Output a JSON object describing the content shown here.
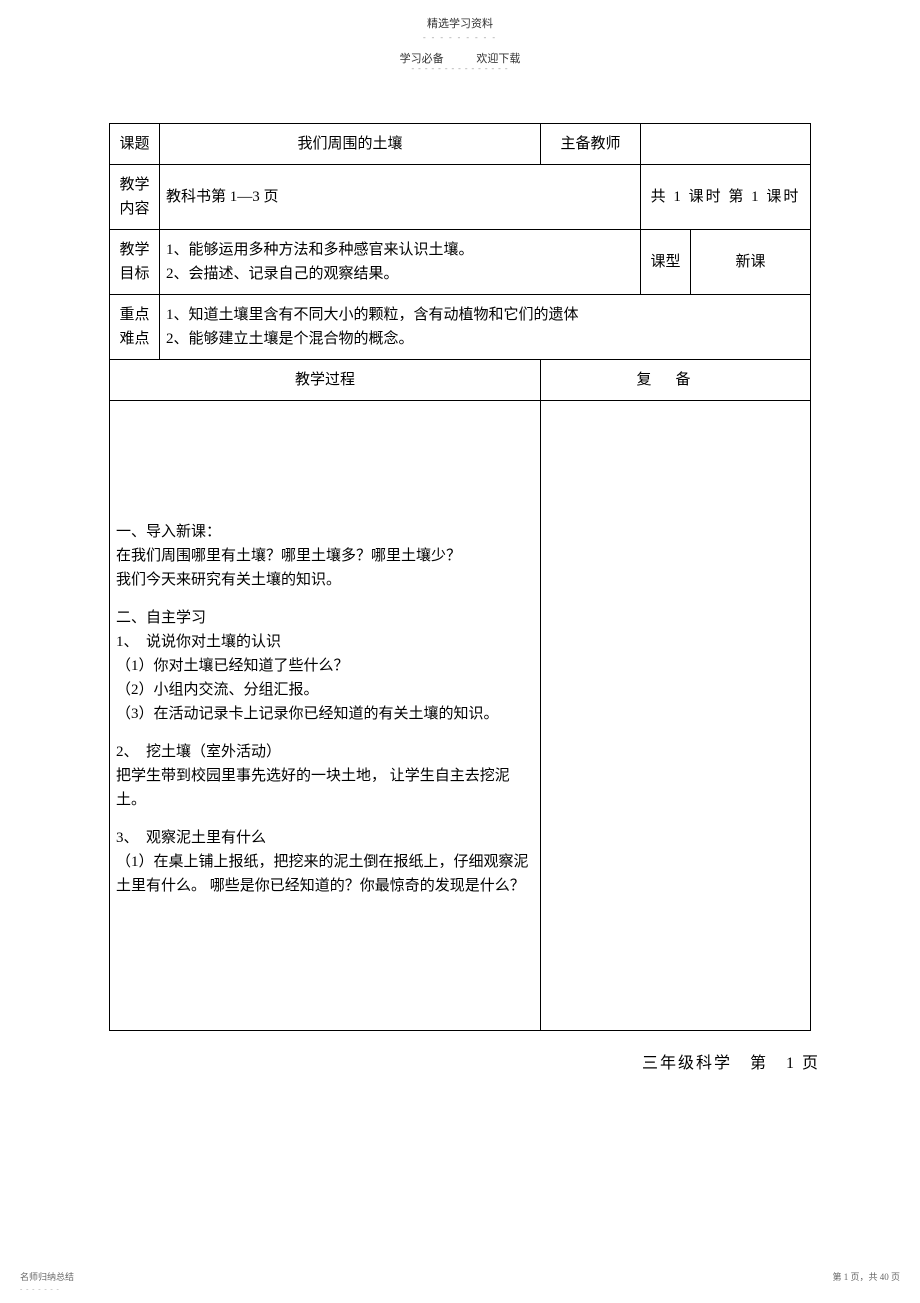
{
  "header": {
    "top": "精选学习资料",
    "dots": "- - - - - - - - -",
    "sub_left": "学习必备",
    "sub_right": "欢迎下载",
    "underline": "- - - - - - - - - - - - - - -"
  },
  "table": {
    "row1": {
      "label": "课题",
      "title": "我们周围的土壤",
      "teacher_label": "主备教师",
      "teacher_value": ""
    },
    "row2": {
      "label": "教学内容",
      "content": "教科书第 1—3 页",
      "lesson_time": "共 1 课时 第 1 课时"
    },
    "row3": {
      "label": "教学目标",
      "goals_1": "1、能够运用多种方法和多种感官来认识土壤。",
      "goals_2": "2、会描述、记录自己的观察结果。",
      "class_type_label": "课型",
      "class_type_value": "新课"
    },
    "row4": {
      "label": "重点难点",
      "point_1": "1、知道土壤里含有不同大小的颗粒，含有动植物和它们的遗体",
      "point_2": "2、能够建立土壤是个混合物的概念。"
    },
    "row5": {
      "process_header": "教学过程",
      "review_header": "复备"
    },
    "process": {
      "sec1_title": "一、导入新课：",
      "sec1_line1": "在我们周围哪里有土壤？哪里土壤多？哪里土壤少？",
      "sec1_line2": "我们今天来研究有关土壤的知识。",
      "sec2_title": "二、自主学习",
      "sec2_line1": "1、　说说你对土壤的认识",
      "sec2_line2": "（1）你对土壤已经知道了些什么？",
      "sec2_line3": "（2）小组内交流、分组汇报。",
      "sec2_line4": "（3）在活动记录卡上记录你已经知道的有关土壤的知识。",
      "sec3_line1": "2、　挖土壤（室外活动）",
      "sec3_line2": "把学生带到校园里事先选好的一块土地， 让学生自主去挖泥土。",
      "sec4_line1": "3、　观察泥土里有什么",
      "sec4_line2": "（1）在桌上铺上报纸，把挖来的泥土倒在报纸上，仔细观察泥土里有什么。 哪些是你已经知道的？你最惊奇的发现是什么？"
    }
  },
  "footer": {
    "right": "三年级科学　第　1 页",
    "bottom_left": "名师归纳总结",
    "bottom_right": "第 1 页，共 40 页",
    "dots_left": "- - - - - - -"
  }
}
